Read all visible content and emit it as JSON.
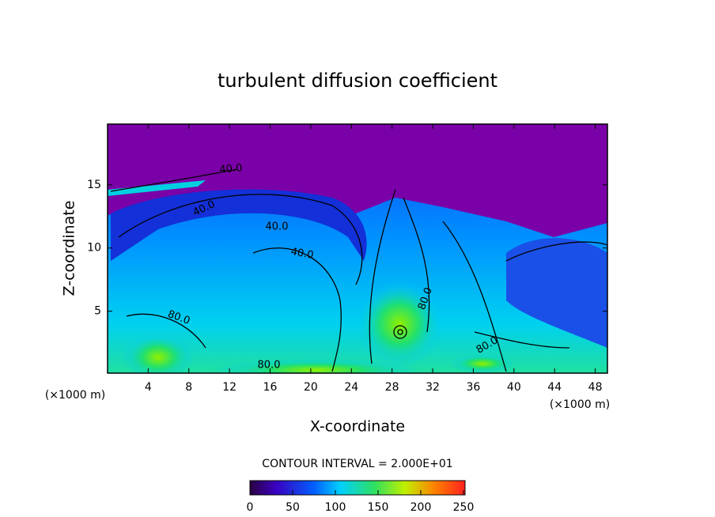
{
  "chart_data": {
    "type": "contour",
    "title": "turbulent diffusion coefficient",
    "xlabel": "X-coordinate",
    "ylabel": "Z-coordinate",
    "x_unit": "(×1000 m)",
    "xlim": [
      0,
      49.2
    ],
    "xticks": [
      4,
      8,
      12,
      16,
      20,
      24,
      28,
      32,
      36,
      40,
      44,
      48
    ],
    "ylim": [
      0.1,
      19.8
    ],
    "yticks": [
      5,
      10,
      15
    ],
    "contour_labels": [
      "40.0",
      "40.0",
      "40.0",
      "40.0",
      "80.0",
      "80.0",
      "80.0",
      "80.0"
    ],
    "colorbar_title": "CONTOUR INTERVAL = 2.000E+01",
    "clim": [
      0,
      250
    ],
    "cticks": [
      0,
      50,
      100,
      150,
      200,
      250
    ]
  }
}
